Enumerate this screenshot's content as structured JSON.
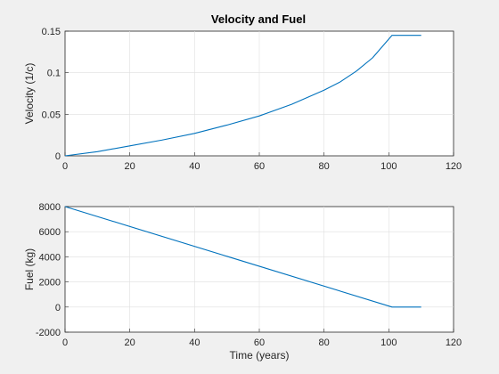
{
  "figure": {
    "title": "Velocity and Fuel"
  },
  "chart_data": [
    {
      "type": "line",
      "title": "Velocity and Fuel",
      "xlabel": "",
      "ylabel": "Velocity (1/c)",
      "xlim": [
        0,
        120
      ],
      "ylim": [
        0,
        0.15
      ],
      "xticks": [
        0,
        20,
        40,
        60,
        80,
        100,
        120
      ],
      "xtick_labels": [
        "0",
        "20",
        "40",
        "60",
        "80",
        "100",
        "120"
      ],
      "yticks": [
        0,
        0.05,
        0.1,
        0.15
      ],
      "ytick_labels": [
        "0",
        "0.05",
        "0.1",
        "0.15"
      ],
      "grid": true,
      "series": [
        {
          "color": "#0072bd",
          "x": [
            0,
            10,
            20,
            30,
            40,
            50,
            60,
            70,
            80,
            85,
            90,
            95,
            101,
            110
          ],
          "y": [
            0,
            0.005,
            0.012,
            0.019,
            0.027,
            0.037,
            0.048,
            0.062,
            0.079,
            0.089,
            0.102,
            0.118,
            0.145,
            0.145
          ]
        }
      ]
    },
    {
      "type": "line",
      "title": "",
      "xlabel": "Time (years)",
      "ylabel": "Fuel (kg)",
      "xlim": [
        0,
        120
      ],
      "ylim": [
        -2000,
        8000
      ],
      "xticks": [
        0,
        20,
        40,
        60,
        80,
        100,
        120
      ],
      "xtick_labels": [
        "0",
        "20",
        "40",
        "60",
        "80",
        "100",
        "120"
      ],
      "yticks": [
        -2000,
        0,
        2000,
        4000,
        6000,
        8000
      ],
      "ytick_labels": [
        "-2000",
        "0",
        "2000",
        "4000",
        "6000",
        "8000"
      ],
      "grid": true,
      "series": [
        {
          "color": "#0072bd",
          "x": [
            0,
            101,
            110
          ],
          "y": [
            8000,
            0,
            0
          ]
        }
      ]
    }
  ]
}
